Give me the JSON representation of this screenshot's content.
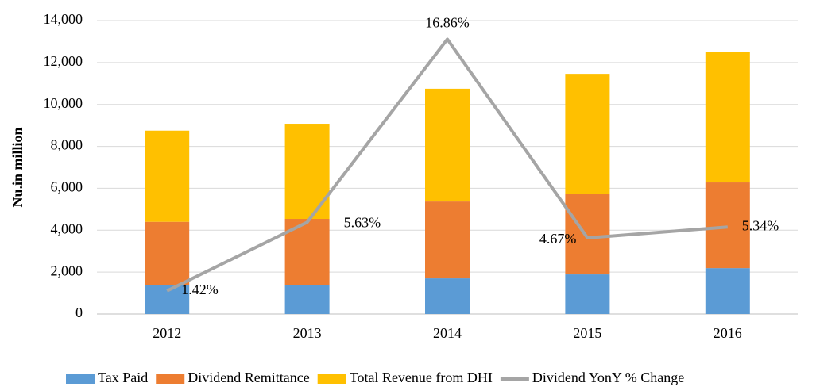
{
  "chart_data": {
    "type": "bar",
    "y_label": "Nu.in million",
    "categories": [
      "2012",
      "2013",
      "2014",
      "2015",
      "2016"
    ],
    "series": [
      {
        "name": "Tax Paid",
        "color": "#5b9bd5",
        "values": [
          1400,
          1400,
          1700,
          1890,
          2190
        ]
      },
      {
        "name": "Dividend Remittance",
        "color": "#ed7d31",
        "values": [
          3000,
          3140,
          3670,
          3860,
          4090
        ]
      },
      {
        "name": "Total Revenue from DHI",
        "color": "#ffc000",
        "values": [
          4350,
          4540,
          5380,
          5710,
          6240
        ]
      },
      {
        "name": "Dividend YonY % Change",
        "color": "#a5a5a5",
        "type": "line",
        "axis": "y2",
        "values": [
          1.42,
          5.63,
          16.86,
          4.67,
          5.34
        ],
        "value_labels": [
          "1.42%",
          "5.63%",
          "16.86%",
          "4.67%",
          "5.34%"
        ]
      }
    ],
    "stacked": true,
    "ylim": [
      0,
      14000
    ],
    "yticks": [
      0,
      {
        "value": 2000,
        "label": "2,000"
      },
      {
        "value": 4000,
        "label": "4,000"
      },
      {
        "value": 6000,
        "label": "6,000"
      },
      {
        "value": 8000,
        "label": "8,000"
      },
      {
        "value": 10000,
        "label": "10,000"
      },
      {
        "value": 12000,
        "label": "12,000"
      },
      {
        "value": 14000,
        "label": "14,000"
      }
    ],
    "y2lim": [
      0,
      18
    ],
    "grid": true,
    "legend": "bottom"
  }
}
